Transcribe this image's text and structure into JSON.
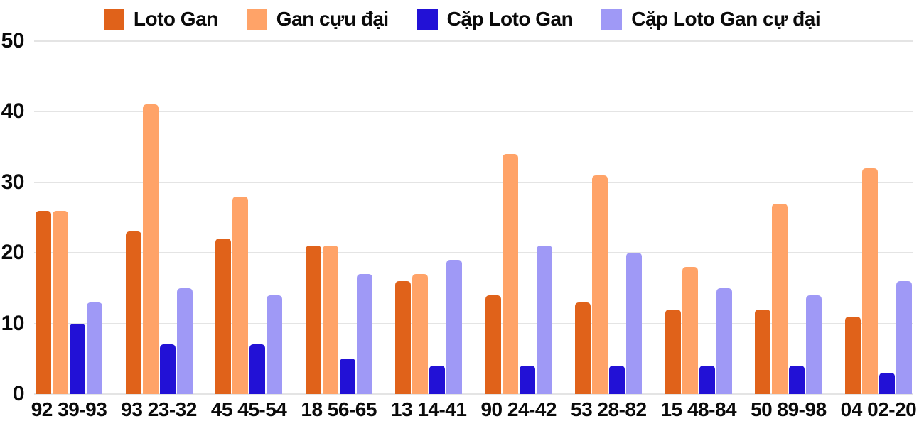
{
  "chart_data": {
    "type": "bar",
    "title": "",
    "xlabel": "",
    "ylabel": "",
    "ylim": [
      0,
      50
    ],
    "yticks": [
      0,
      10,
      20,
      30,
      40,
      50
    ],
    "grid": true,
    "legend_position": "top",
    "background_color": "#ffffff",
    "gridline_color": "#e4e4e4",
    "categories": [
      "92 39-93",
      "93 23-32",
      "45 45-54",
      "18 56-65",
      "13 14-41",
      "90 24-42",
      "53 28-82",
      "15 48-84",
      "50 89-98",
      "04 02-20"
    ],
    "series": [
      {
        "name": "Loto Gan",
        "color": "#e0621a",
        "values": [
          26,
          23,
          22,
          21,
          16,
          14,
          13,
          12,
          12,
          11
        ]
      },
      {
        "name": "Gan cựu đại",
        "color": "#ffa368",
        "values": [
          26,
          41,
          28,
          21,
          17,
          34,
          31,
          18,
          27,
          32
        ]
      },
      {
        "name": "Cặp Loto Gan",
        "color": "#2211d6",
        "values": [
          10,
          7,
          7,
          5,
          4,
          4,
          4,
          4,
          4,
          3
        ]
      },
      {
        "name": "Cặp Loto Gan cự đại",
        "color": "#9f99f6",
        "values": [
          13,
          15,
          14,
          17,
          19,
          21,
          20,
          15,
          14,
          16
        ]
      }
    ]
  }
}
